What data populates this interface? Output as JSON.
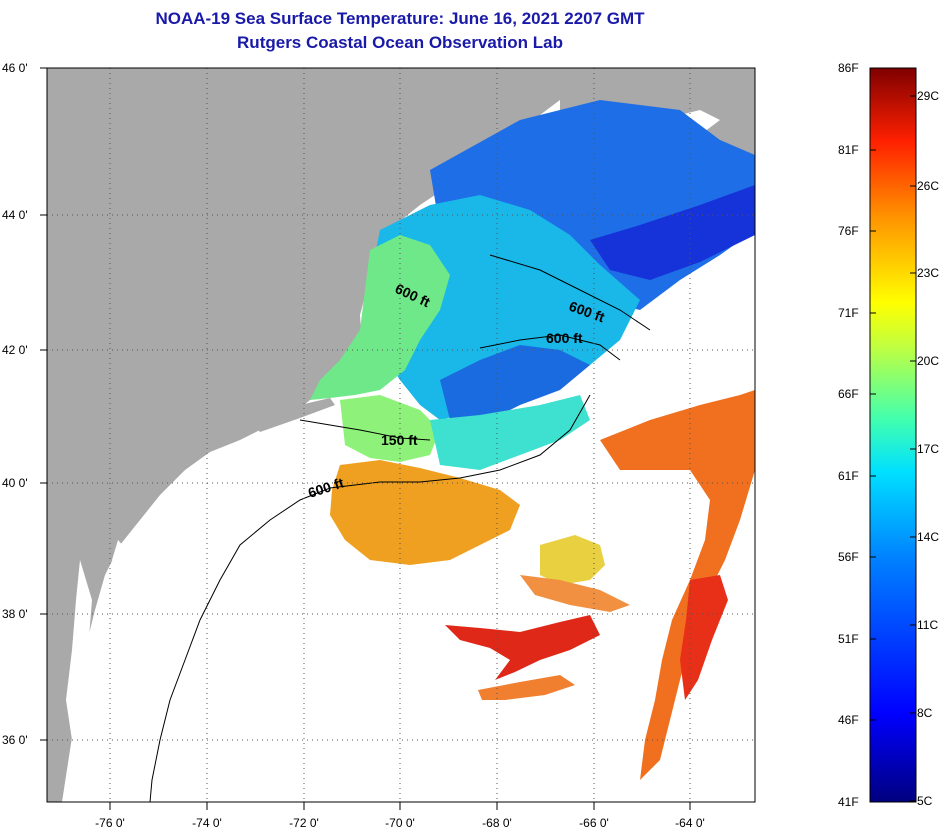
{
  "title": "NOAA-19 Sea Surface Temperature:  June 16, 2021 2207 GMT",
  "subtitle": "Rutgers Coastal Ocean Observation Lab",
  "lat_labels": [
    "46 0'",
    "44 0'",
    "42 0'",
    "40 0'",
    "38 0'",
    "36 0'"
  ],
  "lon_labels": [
    "-76 0'",
    "-74 0'",
    "-72 0'",
    "-70 0'",
    "-68 0'",
    "-66 0'",
    "-64 0'"
  ],
  "contour_labels": [
    "600 ft",
    "600 ft",
    "600 ft",
    "150 ft",
    "600 ft"
  ],
  "colorbar": {
    "fahrenheit": [
      "86F",
      "81F",
      "76F",
      "71F",
      "66F",
      "61F",
      "56F",
      "51F",
      "46F",
      "41F"
    ],
    "celsius": [
      "29C",
      "26C",
      "23C",
      "20C",
      "17C",
      "14C",
      "11C",
      "8C",
      "5C"
    ]
  },
  "colors": {
    "title": "#1a1aa8",
    "land": "#a9a9a9",
    "ocean_nodata": "#ffffff"
  }
}
